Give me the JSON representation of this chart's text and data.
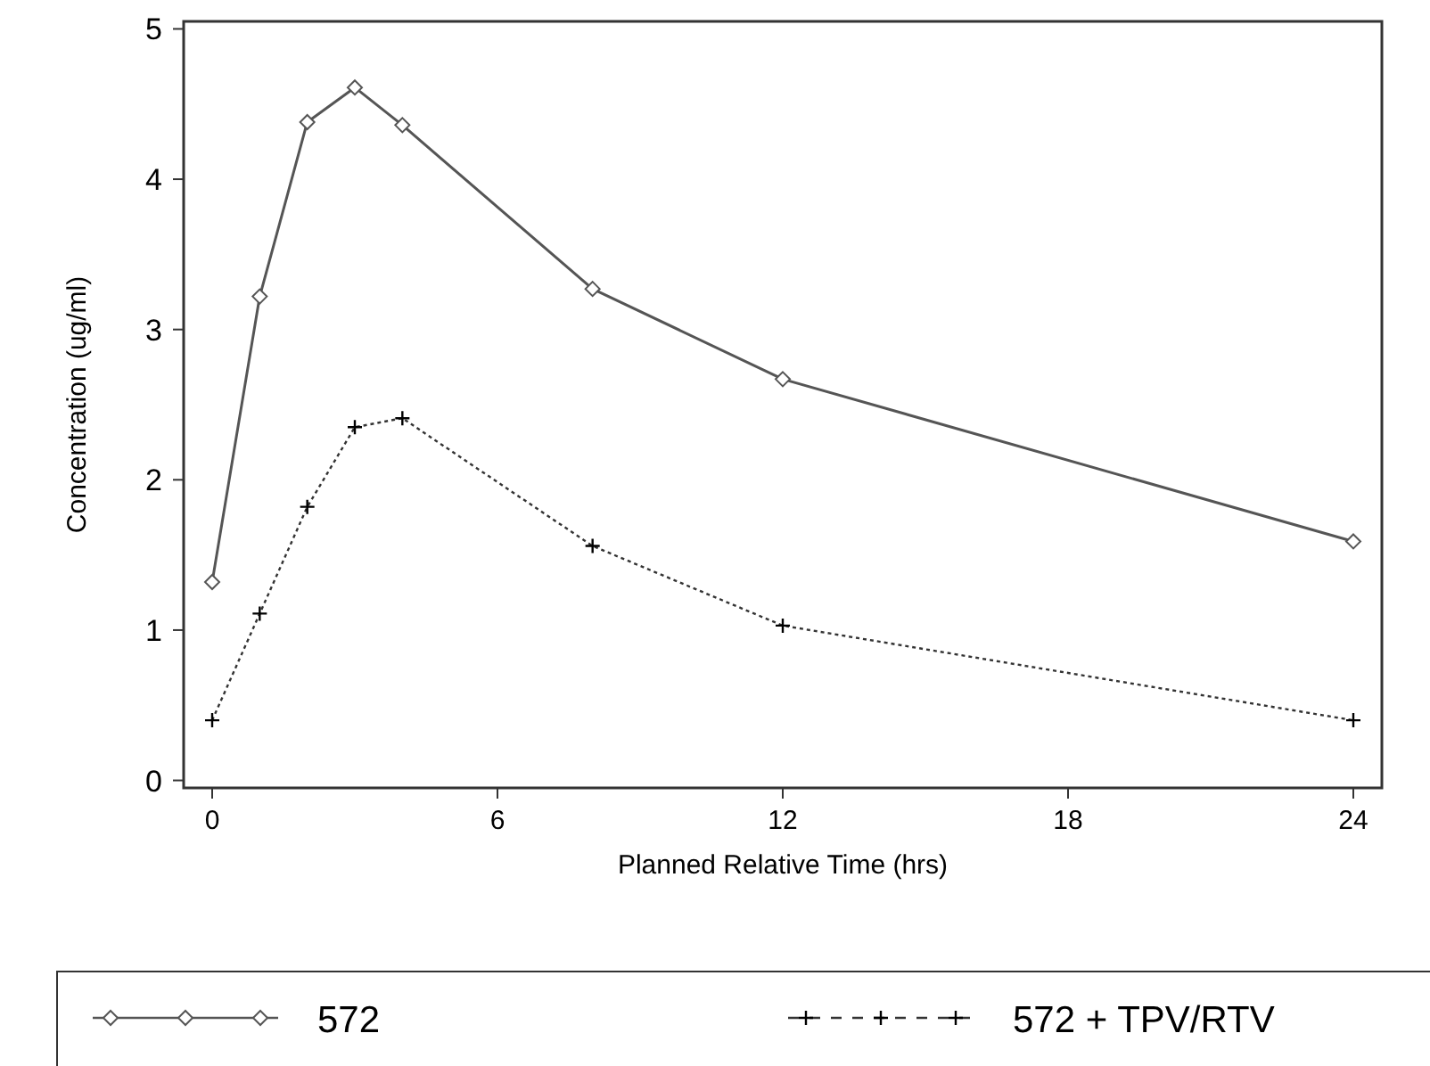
{
  "chart_data": {
    "type": "line",
    "xlabel": "Planned Relative Time (hrs)",
    "ylabel": "Concentration (ug/ml)",
    "x": [
      0,
      1,
      2,
      3,
      4,
      8,
      12,
      24
    ],
    "xlim": [
      -0.6,
      24.6
    ],
    "xticks": [
      0,
      6,
      12,
      18,
      24
    ],
    "ylim": [
      -0.05,
      5.05
    ],
    "yticks": [
      0,
      1,
      2,
      3,
      4,
      5
    ],
    "grid": false,
    "legend": "bottom",
    "series": [
      {
        "name": "572",
        "color": "#555555",
        "marker": "diamond",
        "line_style": "solid",
        "values": [
          1.32,
          3.22,
          4.38,
          4.61,
          4.36,
          3.27,
          2.67,
          1.59
        ]
      },
      {
        "name": "572 + TPV/RTV",
        "color": "#333333",
        "marker": "cross",
        "line_style": "dotted",
        "values": [
          0.4,
          1.11,
          1.82,
          2.35,
          2.41,
          1.56,
          1.03,
          0.4
        ]
      }
    ]
  }
}
